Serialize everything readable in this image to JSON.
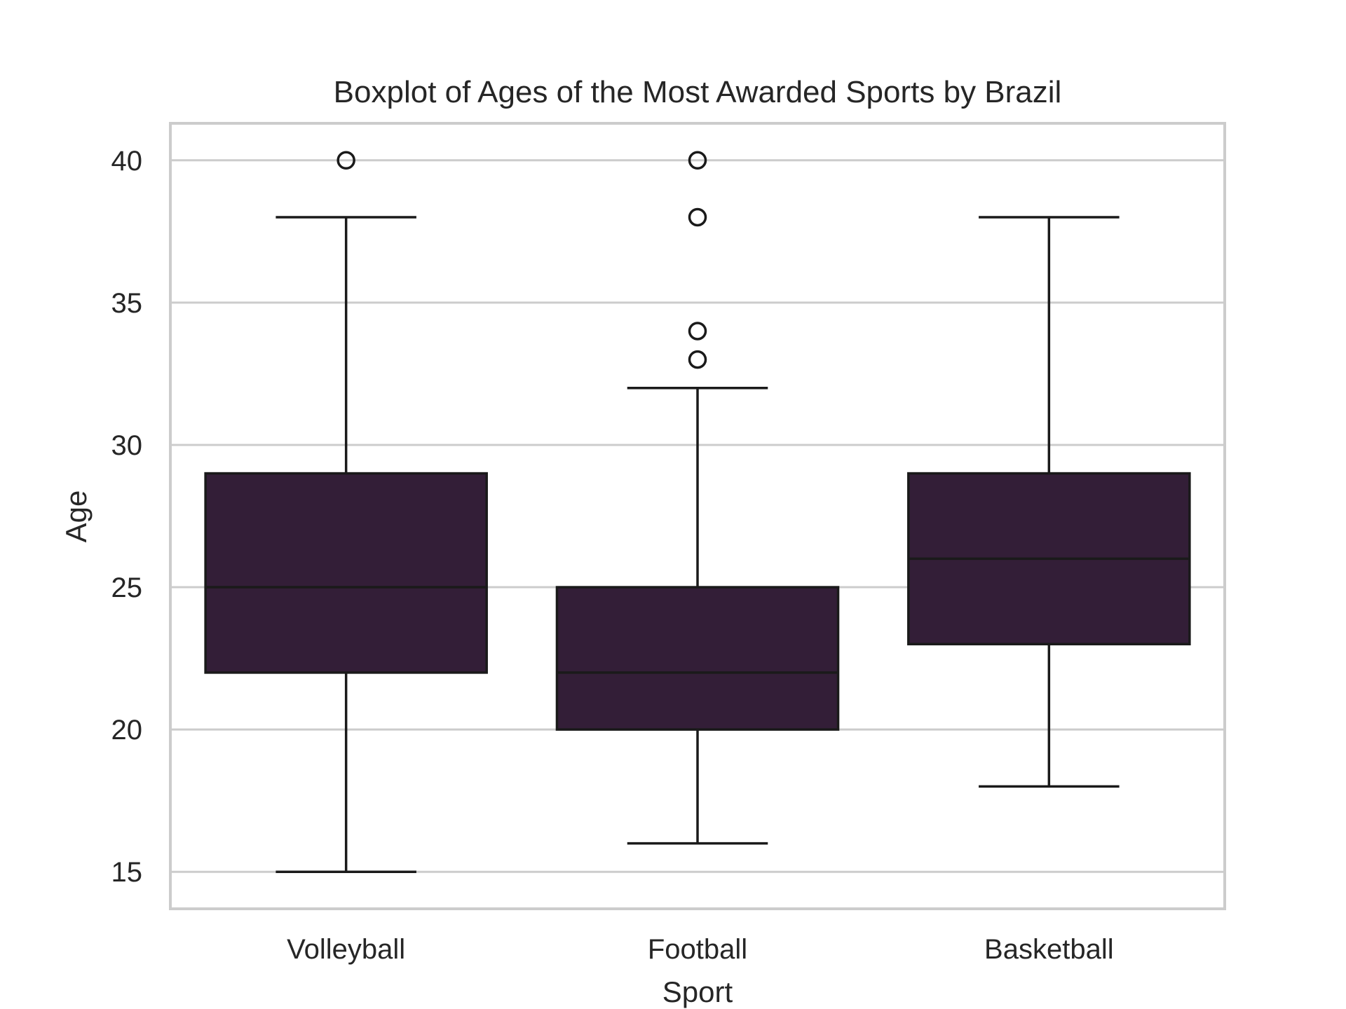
{
  "chart_data": {
    "type": "boxplot",
    "title": "Boxplot of Ages of the Most Awarded Sports by Brazil",
    "xlabel": "Sport",
    "ylabel": "Age",
    "ylim": [
      13.7,
      41.3
    ],
    "yticks": [
      15,
      20,
      25,
      30,
      35,
      40
    ],
    "grid": "horizontal",
    "legend": "none",
    "colors": {
      "box_fill": "#331e37",
      "line": "#1a1a1a",
      "grid": "#cccccc",
      "frame": "#cccccc",
      "text": "#262626"
    },
    "categories": [
      "Volleyball",
      "Football",
      "Basketball"
    ],
    "boxes": [
      {
        "category": "Volleyball",
        "whisker_low": 15,
        "q1": 22,
        "median": 25,
        "q3": 29,
        "whisker_high": 38,
        "outliers": [
          40
        ]
      },
      {
        "category": "Football",
        "whisker_low": 16,
        "q1": 20,
        "median": 22,
        "q3": 25,
        "whisker_high": 32,
        "outliers": [
          33,
          34,
          38,
          40
        ]
      },
      {
        "category": "Basketball",
        "whisker_low": 18,
        "q1": 23,
        "median": 26,
        "q3": 29,
        "whisker_high": 38,
        "outliers": []
      }
    ]
  }
}
